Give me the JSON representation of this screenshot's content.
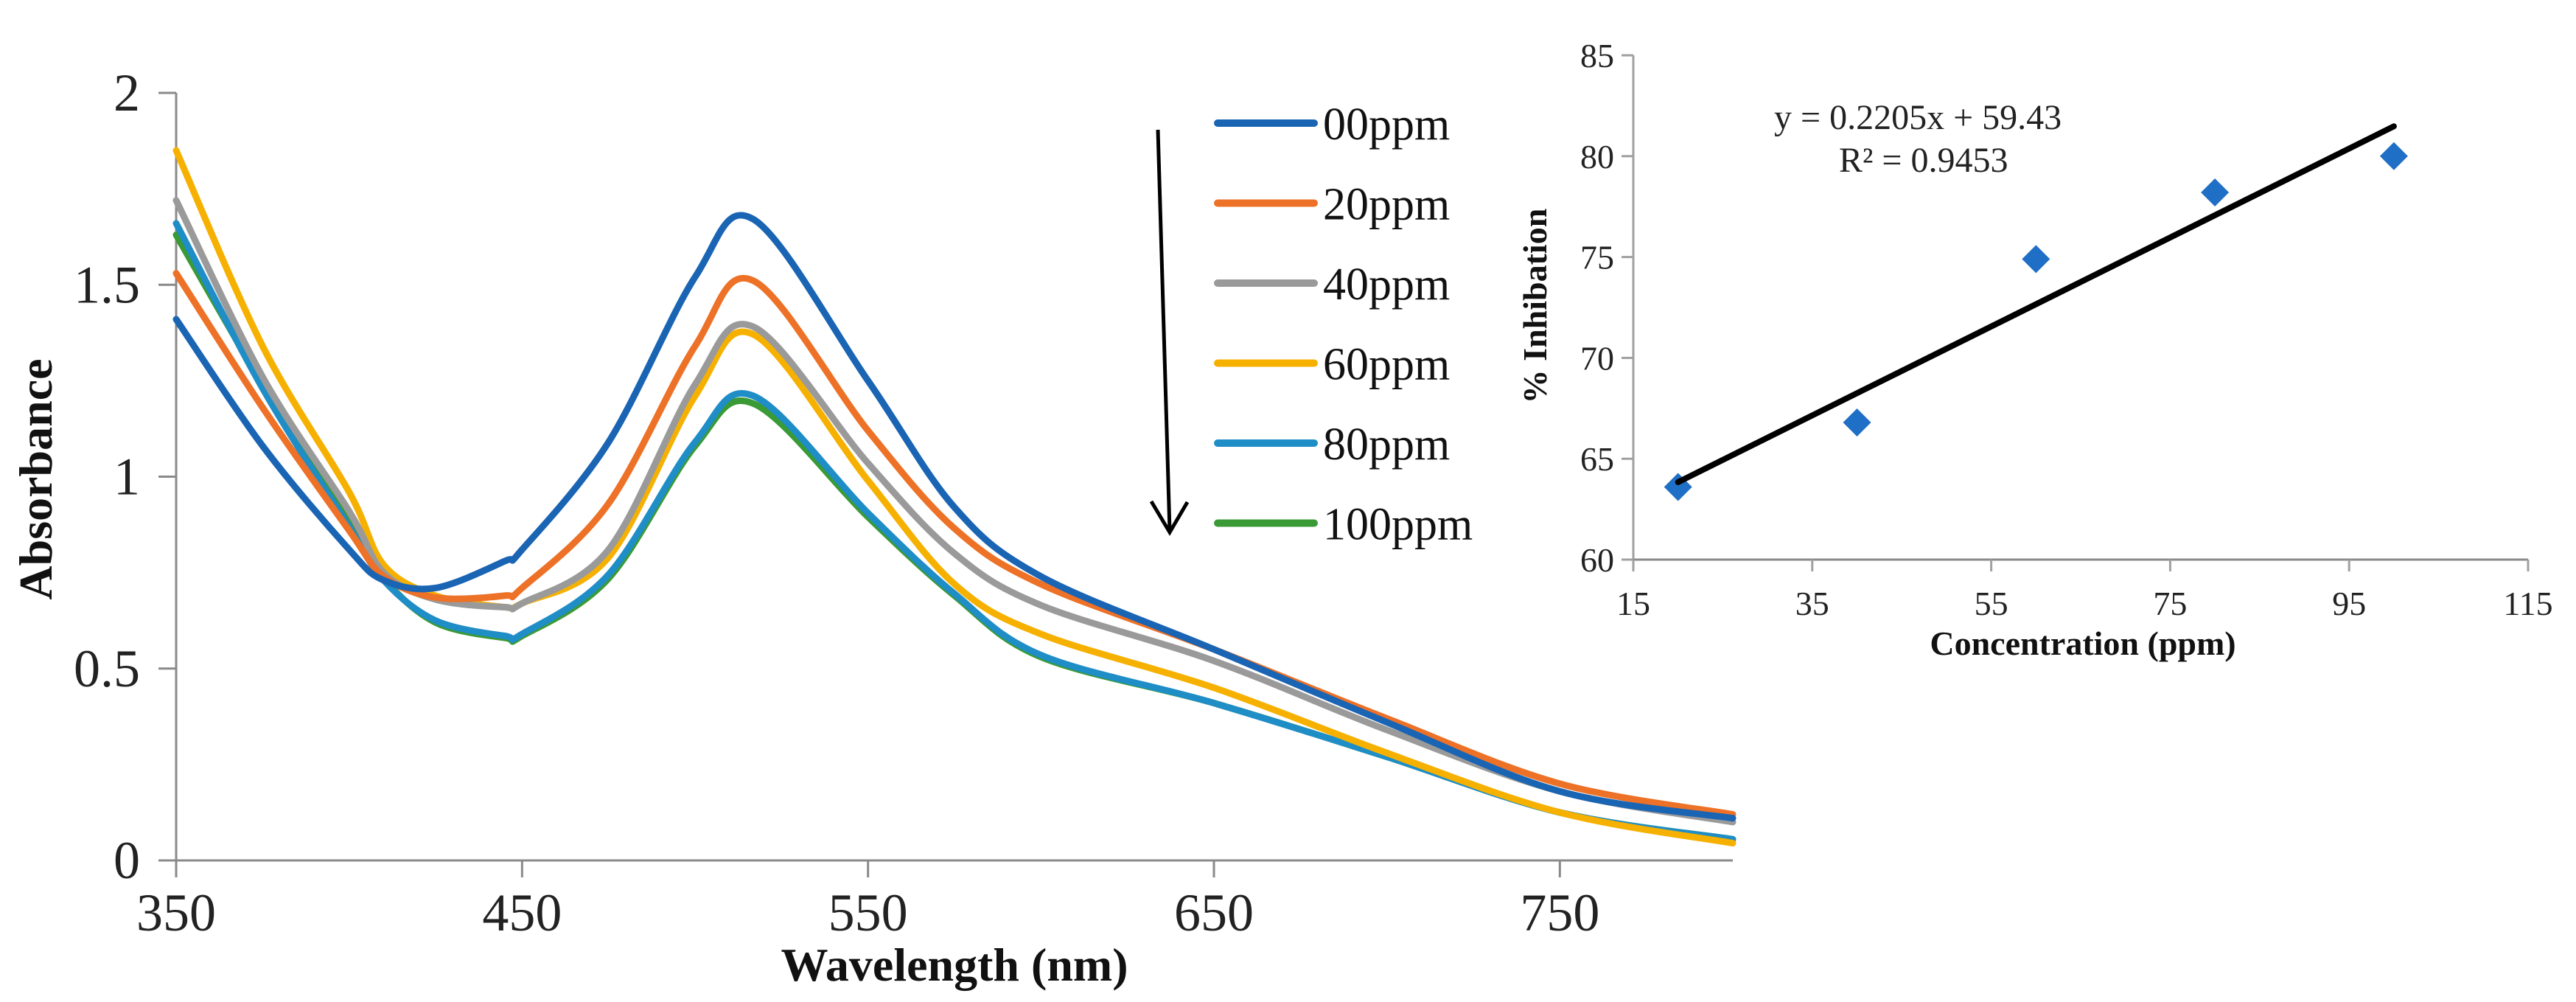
{
  "chart_data": [
    {
      "type": "line",
      "title": "",
      "xlabel": "Wavelength (nm)",
      "ylabel": "Absorbance",
      "xlim": [
        350,
        800
      ],
      "ylim": [
        0,
        2
      ],
      "xticks": [
        "350",
        "450",
        "550",
        "650",
        "750"
      ],
      "yticks": [
        "0",
        "0.5",
        "1",
        "1.5",
        "2"
      ],
      "grid": false,
      "legend_position": "top-right",
      "annotation": "downward arrow indicating decreasing absorbance with concentration",
      "x": [
        350,
        375,
        400,
        410,
        425,
        445,
        450,
        475,
        500,
        517,
        550,
        575,
        600,
        650,
        700,
        750,
        800
      ],
      "series": [
        {
          "name": "00ppm",
          "color": "#1a64b4",
          "values": [
            1.41,
            1.08,
            0.81,
            0.73,
            0.71,
            0.78,
            0.81,
            1.09,
            1.52,
            1.67,
            1.25,
            0.92,
            0.74,
            0.55,
            0.36,
            0.18,
            0.11
          ]
        },
        {
          "name": "20ppm",
          "color": "#ed7126",
          "values": [
            1.53,
            1.18,
            0.86,
            0.74,
            0.685,
            0.69,
            0.71,
            0.93,
            1.34,
            1.51,
            1.12,
            0.865,
            0.72,
            0.55,
            0.37,
            0.2,
            0.12
          ]
        },
        {
          "name": "40ppm",
          "color": "#9a9a9a",
          "values": [
            1.72,
            1.26,
            0.91,
            0.75,
            0.68,
            0.66,
            0.67,
            0.81,
            1.24,
            1.39,
            1.035,
            0.8,
            0.665,
            0.52,
            0.34,
            0.18,
            0.1
          ]
        },
        {
          "name": "60ppm",
          "color": "#f6b100",
          "values": [
            1.85,
            1.34,
            0.96,
            0.77,
            0.69,
            0.66,
            0.67,
            0.79,
            1.21,
            1.37,
            0.99,
            0.72,
            0.59,
            0.45,
            0.28,
            0.125,
            0.045
          ]
        },
        {
          "name": "80ppm",
          "color": "#1f8dc6",
          "values": [
            1.66,
            1.23,
            0.87,
            0.73,
            0.625,
            0.585,
            0.59,
            0.745,
            1.09,
            1.21,
            0.905,
            0.695,
            0.535,
            0.41,
            0.27,
            0.125,
            0.055
          ]
        },
        {
          "name": "100ppm",
          "color": "#3a9a35",
          "values": [
            1.63,
            1.24,
            0.88,
            0.735,
            0.62,
            0.58,
            0.585,
            0.735,
            1.08,
            1.19,
            0.895,
            0.69,
            0.53,
            0.41,
            0.27,
            0.125,
            0.055
          ]
        }
      ]
    },
    {
      "type": "scatter",
      "title": "",
      "xlabel": "Concentration (ppm)",
      "ylabel": "% Inhibation",
      "xlim": [
        15,
        115
      ],
      "ylim": [
        60,
        85
      ],
      "xticks": [
        "15",
        "35",
        "55",
        "75",
        "95",
        "115"
      ],
      "yticks": [
        "60",
        "65",
        "70",
        "75",
        "80",
        "85"
      ],
      "grid": false,
      "marker_color": "#1f6fc6",
      "x": [
        20,
        40,
        60,
        80,
        100
      ],
      "y": [
        63.6,
        66.8,
        74.9,
        78.2,
        80.0
      ],
      "trendline": {
        "slope": 0.2205,
        "intercept": 59.43,
        "x_range": [
          20,
          100
        ],
        "color": "#000000"
      },
      "equation": "y = 0.2205x + 59.43",
      "r_squared": "R² = 0.9453"
    }
  ]
}
